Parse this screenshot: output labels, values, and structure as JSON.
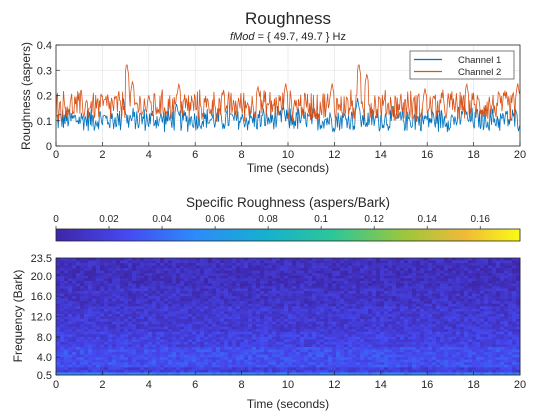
{
  "chart_data": [
    {
      "type": "line",
      "title": "Roughness",
      "subtitle_label": "fMod",
      "subtitle_value": " = { 49.7, 49.7 } Hz",
      "xlabel": "Time (seconds)",
      "ylabel": "Roughness (aspers)",
      "xlim": [
        0,
        20
      ],
      "ylim": [
        0,
        0.4
      ],
      "xticks": [
        "0",
        "2",
        "4",
        "6",
        "8",
        "10",
        "12",
        "14",
        "16",
        "18",
        "20"
      ],
      "yticks": [
        "0",
        "0.1",
        "0.2",
        "0.3",
        "0.4"
      ],
      "grid": true,
      "legend_position": "top-right",
      "series": [
        {
          "name": "Channel 1",
          "color": "#0072BD",
          "mean": 0.105,
          "spread": 0.055,
          "peaks": [
            [
              2.9,
              0.19
            ],
            [
              5.2,
              0.17
            ],
            [
              9.8,
              0.16
            ],
            [
              13.0,
              0.19
            ],
            [
              17.6,
              0.17
            ]
          ]
        },
        {
          "name": "Channel 2",
          "color": "#D95319",
          "mean": 0.16,
          "spread": 0.07,
          "peaks": [
            [
              3.05,
              0.33
            ],
            [
              3.3,
              0.26
            ],
            [
              5.3,
              0.25
            ],
            [
              8.7,
              0.24
            ],
            [
              9.9,
              0.25
            ],
            [
              11.9,
              0.25
            ],
            [
              13.05,
              0.33
            ],
            [
              13.4,
              0.29
            ],
            [
              15.9,
              0.23
            ],
            [
              17.7,
              0.25
            ],
            [
              19.9,
              0.25
            ]
          ]
        }
      ]
    },
    {
      "type": "heatmap",
      "title": "Specific Roughness (aspers/Bark)",
      "xlabel": "Time (seconds)",
      "ylabel": "Frequency (Bark)",
      "xlim": [
        0,
        20
      ],
      "ylim": [
        0.5,
        23.5
      ],
      "xticks": [
        "0",
        "2",
        "4",
        "6",
        "8",
        "10",
        "12",
        "14",
        "16",
        "18",
        "20"
      ],
      "yticks": [
        "0.5",
        "4.0",
        "8.0",
        "12.0",
        "16.0",
        "20.0",
        "23.5"
      ],
      "colorbar": {
        "range": [
          0,
          0.175
        ],
        "ticks": [
          "0",
          "0.02",
          "0.04",
          "0.06",
          "0.08",
          "0.1",
          "0.12",
          "0.14",
          "0.16"
        ],
        "colormap": "parula"
      }
    }
  ]
}
